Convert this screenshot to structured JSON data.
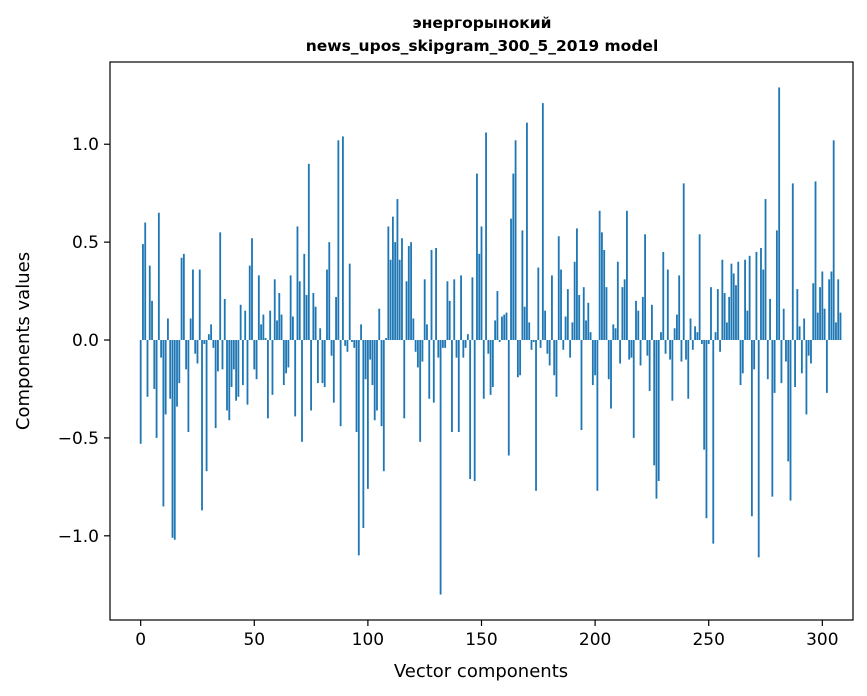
{
  "chart_data": {
    "type": "bar",
    "title_line1": "энергорынокий",
    "title_line2": "news_upos_skipgram_300_5_2019 model",
    "xlabel": "Vector components",
    "ylabel": "Components values",
    "xlim": [
      -13.5,
      313.5
    ],
    "ylim": [
      -1.43,
      1.42
    ],
    "xticks": [
      0,
      50,
      100,
      150,
      200,
      250,
      300
    ],
    "xtick_labels": [
      "0",
      "50",
      "100",
      "150",
      "200",
      "250",
      "300"
    ],
    "yticks": [
      -1.0,
      -0.5,
      0.0,
      0.5,
      1.0
    ],
    "ytick_labels": [
      "−1.0",
      "−0.5",
      "0.0",
      "0.5",
      "1.0"
    ],
    "bar_color": "#1f77b4",
    "series": [
      {
        "values": [
          -0.53,
          0.49,
          0.6,
          -0.29,
          0.38,
          0.2,
          -0.25,
          -0.5,
          0.65,
          -0.09,
          -0.85,
          -0.38,
          0.11,
          -0.3,
          -1.01,
          -1.02,
          -0.34,
          -0.22,
          0.42,
          0.44,
          -0.15,
          -0.47,
          0.11,
          0.36,
          -0.07,
          -0.12,
          0.36,
          -0.87,
          -0.02,
          -0.67,
          0.03,
          0.08,
          -0.04,
          -0.45,
          -0.16,
          0.55,
          -0.15,
          0.21,
          -0.36,
          -0.41,
          -0.24,
          -0.15,
          -0.31,
          -0.29,
          0.18,
          -0.23,
          0.15,
          -0.33,
          0.38,
          0.52,
          -0.15,
          -0.2,
          0.33,
          0.08,
          0.13,
          0.01,
          -0.4,
          0.15,
          -0.28,
          0.31,
          0.1,
          0.24,
          0.13,
          -0.23,
          -0.17,
          -0.14,
          0.33,
          0.12,
          -0.39,
          0.58,
          0.3,
          -0.52,
          0.44,
          0.23,
          0.9,
          -0.36,
          0.24,
          0.17,
          -0.22,
          0.06,
          -0.22,
          -0.24,
          0.36,
          0.5,
          -0.08,
          -0.32,
          0.22,
          1.02,
          -0.44,
          1.04,
          -0.03,
          -0.06,
          0.39,
          -0.01,
          -0.04,
          -0.47,
          -1.1,
          0.08,
          -0.96,
          -0.2,
          -0.76,
          -0.1,
          -0.23,
          -0.41,
          -0.36,
          0.16,
          -0.44,
          -0.67,
          0.01,
          0.58,
          0.41,
          0.63,
          0.5,
          0.72,
          0.41,
          0.52,
          -0.4,
          0.3,
          0.48,
          0.5,
          0.11,
          -0.06,
          -0.14,
          -0.52,
          -0.11,
          0.31,
          0.08,
          -0.3,
          0.46,
          -0.32,
          0.47,
          -0.09,
          -1.3,
          -0.04,
          -0.04,
          0.3,
          0.2,
          -0.47,
          0.31,
          -0.09,
          -0.47,
          0.33,
          -0.09,
          -0.04,
          0.03,
          -0.71,
          0.32,
          -0.72,
          0.85,
          0.44,
          0.58,
          -0.3,
          1.06,
          -0.07,
          -0.28,
          -0.24,
          0.1,
          0.25,
          -0.01,
          0.12,
          0.13,
          0.14,
          -0.59,
          0.62,
          0.85,
          1.02,
          -0.19,
          -0.18,
          0.56,
          0.17,
          1.11,
          0.09,
          -0.05,
          -0.01,
          -0.77,
          0.37,
          -0.04,
          1.21,
          0.15,
          -0.07,
          -0.13,
          0.33,
          -0.18,
          -0.29,
          0.53,
          0.36,
          -0.05,
          0.12,
          0.26,
          -0.09,
          0.09,
          0.4,
          0.57,
          0.23,
          -0.46,
          0.27,
          0.1,
          0.19,
          0.04,
          -0.23,
          -0.18,
          -0.77,
          0.66,
          0.55,
          0.46,
          0.27,
          -0.2,
          -0.35,
          0.08,
          0.06,
          0.4,
          -0.12,
          0.27,
          0.31,
          0.66,
          -0.1,
          -0.09,
          -0.5,
          0.2,
          0.15,
          -0.13,
          0.22,
          0.54,
          -0.08,
          -0.26,
          0.18,
          -0.64,
          -0.81,
          -0.72,
          0.04,
          0.45,
          -0.07,
          0.36,
          -0.1,
          -0.31,
          0.06,
          0.13,
          0.33,
          -0.11,
          0.8,
          -0.1,
          -0.3,
          0.11,
          -0.05,
          0.07,
          0.04,
          0.54,
          -0.02,
          -0.56,
          -0.91,
          -0.02,
          0.27,
          -1.04,
          0.04,
          0.26,
          -0.06,
          0.41,
          0.24,
          0.09,
          0.22,
          0.39,
          0.34,
          0.28,
          0.4,
          -0.23,
          -0.17,
          0.41,
          0.15,
          0.43,
          -0.9,
          -0.15,
          0.45,
          -1.11,
          0.47,
          0.36,
          0.72,
          -0.2,
          0.21,
          -0.8,
          -0.27,
          0.56,
          1.29,
          -0.22,
          0.16,
          -0.11,
          -0.62,
          -0.82,
          0.8,
          -0.24,
          0.26,
          0.07,
          -0.17,
          0.11,
          -0.38,
          -0.08,
          -0.12,
          0.29,
          0.81,
          0.14,
          0.27,
          0.35,
          0.16,
          -0.27,
          0.31,
          0.35,
          1.02,
          0.09,
          0.31,
          0.14
        ]
      }
    ]
  }
}
